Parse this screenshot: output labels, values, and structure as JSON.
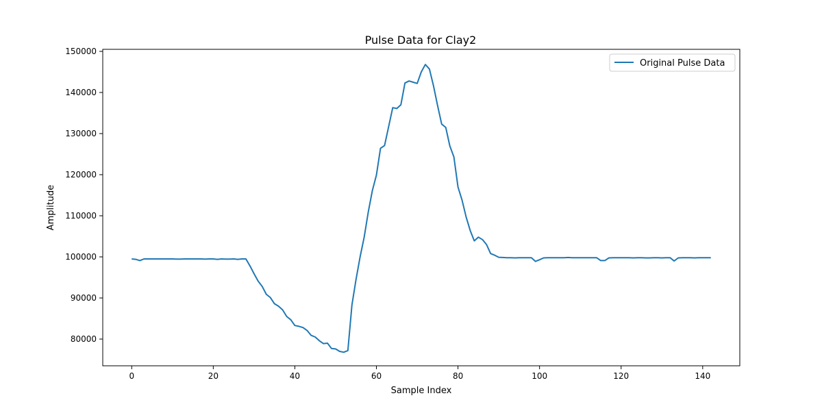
{
  "chart_data": {
    "type": "line",
    "title": "Pulse Data for Clay2",
    "xlabel": "Sample Index",
    "ylabel": "Amplitude",
    "xlim": [
      -7.1,
      149.1
    ],
    "ylim": [
      73500,
      150500
    ],
    "xticks": [
      0,
      20,
      40,
      60,
      80,
      100,
      120,
      140
    ],
    "yticks": [
      80000,
      90000,
      100000,
      110000,
      120000,
      130000,
      140000,
      150000
    ],
    "grid": false,
    "legend_position": "top-right",
    "series": [
      {
        "name": "Original Pulse Data",
        "color": "#1f77b4",
        "x": [
          0,
          1,
          2,
          3,
          4,
          5,
          6,
          7,
          8,
          9,
          10,
          11,
          12,
          13,
          14,
          15,
          16,
          17,
          18,
          19,
          20,
          21,
          22,
          23,
          24,
          25,
          26,
          27,
          28,
          29,
          30,
          31,
          32,
          33,
          34,
          35,
          36,
          37,
          38,
          39,
          40,
          41,
          42,
          43,
          44,
          45,
          46,
          47,
          48,
          49,
          50,
          51,
          52,
          53,
          54,
          55,
          56,
          57,
          58,
          59,
          60,
          61,
          62,
          63,
          64,
          65,
          66,
          67,
          68,
          69,
          70,
          71,
          72,
          73,
          74,
          75,
          76,
          77,
          78,
          79,
          80,
          81,
          82,
          83,
          84,
          85,
          86,
          87,
          88,
          89,
          90,
          91,
          92,
          93,
          94,
          95,
          96,
          97,
          98,
          99,
          100,
          101,
          102,
          103,
          104,
          105,
          106,
          107,
          108,
          109,
          110,
          111,
          112,
          113,
          114,
          115,
          116,
          117,
          118,
          119,
          120,
          121,
          122,
          123,
          124,
          125,
          126,
          127,
          128,
          129,
          130,
          131,
          132,
          133,
          134,
          135,
          136,
          137,
          138,
          139,
          140,
          141,
          142
        ],
        "values": [
          99500,
          99400,
          99100,
          99500,
          99500,
          99500,
          99500,
          99500,
          99500,
          99500,
          99500,
          99450,
          99450,
          99500,
          99500,
          99500,
          99500,
          99500,
          99450,
          99500,
          99500,
          99400,
          99500,
          99450,
          99450,
          99500,
          99400,
          99500,
          99500,
          97800,
          95900,
          94100,
          92800,
          90900,
          90100,
          88600,
          88000,
          87100,
          85500,
          84700,
          83300,
          83100,
          82800,
          82100,
          80900,
          80500,
          79600,
          78900,
          79000,
          77700,
          77600,
          77000,
          76800,
          77200,
          88300,
          94500,
          100000,
          104800,
          110900,
          116100,
          119900,
          126400,
          127100,
          131700,
          136300,
          136100,
          137000,
          142300,
          142800,
          142500,
          142200,
          145000,
          146800,
          145700,
          141600,
          136800,
          132300,
          131500,
          127000,
          124300,
          117000,
          113800,
          109700,
          106400,
          103900,
          104800,
          104200,
          103000,
          100800,
          100400,
          99900,
          99850,
          99800,
          99800,
          99750,
          99800,
          99800,
          99800,
          99800,
          98900,
          99300,
          99750,
          99800,
          99800,
          99800,
          99800,
          99800,
          99850,
          99800,
          99800,
          99800,
          99800,
          99800,
          99800,
          99800,
          99100,
          99100,
          99750,
          99800,
          99800,
          99800,
          99800,
          99800,
          99750,
          99800,
          99800,
          99750,
          99750,
          99800,
          99800,
          99750,
          99800,
          99800,
          99000,
          99750,
          99800,
          99800,
          99800,
          99750,
          99800,
          99800,
          99800,
          99800
        ]
      }
    ]
  }
}
